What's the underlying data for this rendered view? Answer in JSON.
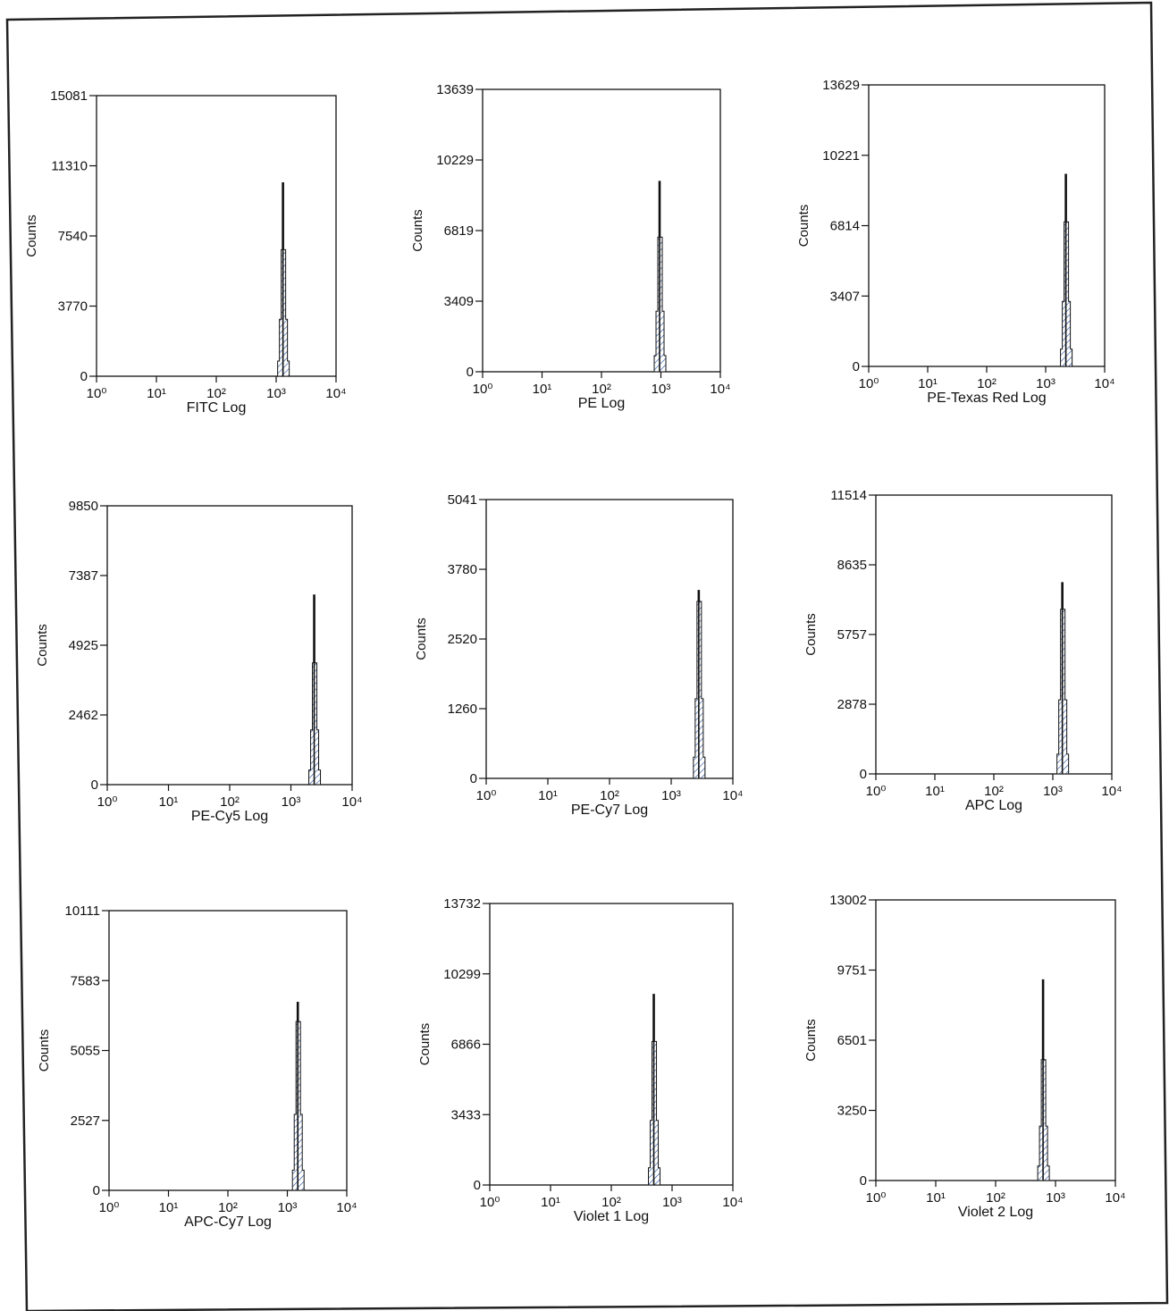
{
  "colors": {
    "hatch": "#1f4e9c",
    "line": "#111111"
  },
  "chart_data": [
    {
      "type": "histogram",
      "xlabel": "FITC Log",
      "ylabel": "Counts",
      "xscale": "log",
      "xlim": [
        1,
        10000
      ],
      "xticks": [
        "10⁰",
        "10¹",
        "10²",
        "10³",
        "10⁴"
      ],
      "ylim": [
        0,
        15081
      ],
      "yticks": [
        0,
        3770,
        7540,
        11310,
        15081
      ],
      "peak": {
        "x": 1300,
        "max_count": 10400,
        "mid_count": 6800
      }
    },
    {
      "type": "histogram",
      "xlabel": "PE Log",
      "ylabel": "Counts",
      "xscale": "log",
      "xlim": [
        1,
        10000
      ],
      "xticks": [
        "10⁰",
        "10¹",
        "10²",
        "10³",
        "10⁴"
      ],
      "ylim": [
        0,
        13639
      ],
      "yticks": [
        0,
        3409,
        6819,
        10229,
        13639
      ],
      "peak": {
        "x": 950,
        "max_count": 9200,
        "mid_count": 6500
      }
    },
    {
      "type": "histogram",
      "xlabel": "PE-Texas Red Log",
      "ylabel": "Counts",
      "xscale": "log",
      "xlim": [
        1,
        10000
      ],
      "xticks": [
        "10⁰",
        "10¹",
        "10²",
        "10³",
        "10⁴"
      ],
      "ylim": [
        0,
        13629
      ],
      "yticks": [
        0,
        3407,
        6814,
        10221,
        13629
      ],
      "peak": {
        "x": 2200,
        "max_count": 9300,
        "mid_count": 7000
      }
    },
    {
      "type": "histogram",
      "xlabel": "PE-Cy5 Log",
      "ylabel": "Counts",
      "xscale": "log",
      "xlim": [
        1,
        10000
      ],
      "xticks": [
        "10⁰",
        "10¹",
        "10²",
        "10³",
        "10⁴"
      ],
      "ylim": [
        0,
        9850
      ],
      "yticks": [
        0,
        2462,
        4925,
        7387,
        9850
      ],
      "peak": {
        "x": 2400,
        "max_count": 6700,
        "mid_count": 4300
      }
    },
    {
      "type": "histogram",
      "xlabel": "PE-Cy7 Log",
      "ylabel": "Counts",
      "xscale": "log",
      "xlim": [
        1,
        10000
      ],
      "xticks": [
        "10⁰",
        "10¹",
        "10²",
        "10³",
        "10⁴"
      ],
      "ylim": [
        0,
        5041
      ],
      "yticks": [
        0,
        1260,
        2520,
        3780,
        5041
      ],
      "peak": {
        "x": 2800,
        "max_count": 3400,
        "mid_count": 3200
      }
    },
    {
      "type": "histogram",
      "xlabel": "APC Log",
      "ylabel": "Counts",
      "xscale": "log",
      "xlim": [
        1,
        10000
      ],
      "xticks": [
        "10⁰",
        "10¹",
        "10²",
        "10³",
        "10⁴"
      ],
      "ylim": [
        0,
        11514
      ],
      "yticks": [
        0,
        2878,
        5757,
        8635,
        11514
      ],
      "peak": {
        "x": 1450,
        "max_count": 7900,
        "mid_count": 6800
      }
    },
    {
      "type": "histogram",
      "xlabel": "APC-Cy7 Log",
      "ylabel": "Counts",
      "xscale": "log",
      "xlim": [
        1,
        10000
      ],
      "xticks": [
        "10⁰",
        "10¹",
        "10²",
        "10³",
        "10⁴"
      ],
      "ylim": [
        0,
        10111
      ],
      "yticks": [
        0,
        2527,
        5055,
        7583,
        10111
      ],
      "peak": {
        "x": 1500,
        "max_count": 6800,
        "mid_count": 6100
      }
    },
    {
      "type": "histogram",
      "xlabel": "Violet 1 Log",
      "ylabel": "Counts",
      "xscale": "log",
      "xlim": [
        1,
        10000
      ],
      "xticks": [
        "10⁰",
        "10¹",
        "10²",
        "10³",
        "10⁴"
      ],
      "ylim": [
        0,
        13732
      ],
      "yticks": [
        0,
        3433,
        6866,
        10299,
        13732
      ],
      "peak": {
        "x": 500,
        "max_count": 9300,
        "mid_count": 7000
      }
    },
    {
      "type": "histogram",
      "xlabel": "Violet 2 Log",
      "ylabel": "Counts",
      "xscale": "log",
      "xlim": [
        1,
        10000
      ],
      "xticks": [
        "10⁰",
        "10¹",
        "10²",
        "10³",
        "10⁴"
      ],
      "ylim": [
        0,
        13002
      ],
      "yticks": [
        0,
        3250,
        6501,
        9751,
        13002
      ],
      "peak": {
        "x": 620,
        "max_count": 9300,
        "mid_count": 5600
      }
    }
  ]
}
